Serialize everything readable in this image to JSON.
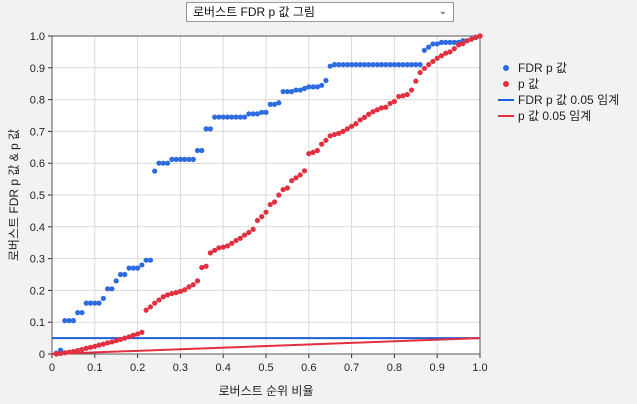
{
  "dropdown": {
    "label": "로버스트 FDR p 값 그림"
  },
  "colors": {
    "fdr": "#2d6be0",
    "p": "#e23040",
    "fdr_line": "#1f5fd6",
    "p_line": "#e0303f",
    "grid": "#d9d9d9"
  },
  "chart_data": {
    "type": "scatter",
    "xlabel": "로버스트 순위 비율",
    "ylabel": "로버스트 FDR p 값 & p 값",
    "xlim": [
      0,
      1
    ],
    "ylim": [
      0,
      1
    ],
    "x_ticks": [
      "0",
      "0.1",
      "0.2",
      "0.3",
      "0.4",
      "0.5",
      "0.6",
      "0.7",
      "0.8",
      "0.9",
      "1.0"
    ],
    "y_ticks": [
      "0",
      "0.1",
      "0.2",
      "0.3",
      "0.4",
      "0.5",
      "0.6",
      "0.7",
      "0.8",
      "0.9",
      "1.0"
    ],
    "grid": true,
    "legend_placement": "right",
    "x": [
      0.01,
      0.02,
      0.03,
      0.04,
      0.05,
      0.06,
      0.07,
      0.08,
      0.09,
      0.1,
      0.11,
      0.12,
      0.13,
      0.14,
      0.15,
      0.16,
      0.17,
      0.18,
      0.19,
      0.2,
      0.21,
      0.22,
      0.23,
      0.24,
      0.25,
      0.26,
      0.27,
      0.28,
      0.29,
      0.3,
      0.31,
      0.32,
      0.33,
      0.34,
      0.35,
      0.36,
      0.37,
      0.38,
      0.39,
      0.4,
      0.41,
      0.42,
      0.43,
      0.44,
      0.45,
      0.46,
      0.47,
      0.48,
      0.49,
      0.5,
      0.51,
      0.52,
      0.53,
      0.54,
      0.55,
      0.56,
      0.57,
      0.58,
      0.59,
      0.6,
      0.61,
      0.62,
      0.63,
      0.64,
      0.65,
      0.66,
      0.67,
      0.68,
      0.69,
      0.7,
      0.71,
      0.72,
      0.73,
      0.74,
      0.75,
      0.76,
      0.77,
      0.78,
      0.79,
      0.8,
      0.81,
      0.82,
      0.83,
      0.84,
      0.85,
      0.86,
      0.87,
      0.88,
      0.89,
      0.9,
      0.91,
      0.92,
      0.93,
      0.94,
      0.95,
      0.96,
      0.97,
      0.98,
      0.99,
      1.0
    ],
    "series": [
      {
        "name": "FDR p 값",
        "values": [
          0.003,
          0.012,
          0.105,
          0.105,
          0.105,
          0.13,
          0.13,
          0.16,
          0.16,
          0.16,
          0.16,
          0.175,
          0.205,
          0.205,
          0.23,
          0.25,
          0.25,
          0.27,
          0.27,
          0.27,
          0.28,
          0.295,
          0.295,
          0.575,
          0.6,
          0.6,
          0.6,
          0.612,
          0.612,
          0.612,
          0.612,
          0.612,
          0.612,
          0.64,
          0.64,
          0.708,
          0.708,
          0.745,
          0.745,
          0.745,
          0.745,
          0.745,
          0.745,
          0.745,
          0.745,
          0.755,
          0.755,
          0.755,
          0.76,
          0.76,
          0.785,
          0.785,
          0.79,
          0.825,
          0.825,
          0.825,
          0.83,
          0.83,
          0.835,
          0.84,
          0.84,
          0.84,
          0.845,
          0.86,
          0.905,
          0.91,
          0.91,
          0.91,
          0.91,
          0.91,
          0.91,
          0.91,
          0.91,
          0.91,
          0.91,
          0.91,
          0.91,
          0.91,
          0.91,
          0.91,
          0.91,
          0.91,
          0.91,
          0.91,
          0.91,
          0.91,
          0.955,
          0.965,
          0.975,
          0.975,
          0.98,
          0.98,
          0.98,
          0.98,
          0.98,
          0.985,
          0.985,
          0.99,
          0.995,
          1.0
        ]
      },
      {
        "name": "p 값",
        "values": [
          0.0,
          0.002,
          0.004,
          0.006,
          0.008,
          0.011,
          0.014,
          0.018,
          0.021,
          0.024,
          0.028,
          0.031,
          0.035,
          0.038,
          0.042,
          0.046,
          0.05,
          0.054,
          0.059,
          0.063,
          0.068,
          0.138,
          0.148,
          0.16,
          0.17,
          0.18,
          0.186,
          0.19,
          0.193,
          0.197,
          0.202,
          0.211,
          0.218,
          0.23,
          0.272,
          0.276,
          0.318,
          0.326,
          0.334,
          0.336,
          0.34,
          0.348,
          0.357,
          0.364,
          0.374,
          0.382,
          0.392,
          0.42,
          0.432,
          0.446,
          0.47,
          0.478,
          0.5,
          0.517,
          0.522,
          0.545,
          0.554,
          0.563,
          0.576,
          0.63,
          0.634,
          0.64,
          0.66,
          0.672,
          0.686,
          0.69,
          0.694,
          0.7,
          0.708,
          0.716,
          0.724,
          0.736,
          0.744,
          0.754,
          0.762,
          0.768,
          0.774,
          0.776,
          0.788,
          0.794,
          0.81,
          0.812,
          0.816,
          0.83,
          0.858,
          0.885,
          0.898,
          0.91,
          0.92,
          0.93,
          0.938,
          0.946,
          0.95,
          0.96,
          0.972,
          0.976,
          0.985,
          0.99,
          0.996,
          1.0
        ]
      }
    ],
    "threshold_lines": [
      {
        "name": "FDR p 값 0.05 임계",
        "y_start": 0.05,
        "y_end": 0.05
      },
      {
        "name": "p 값 0.05 임계",
        "y_start": 0.0,
        "y_end": 0.05
      }
    ]
  }
}
